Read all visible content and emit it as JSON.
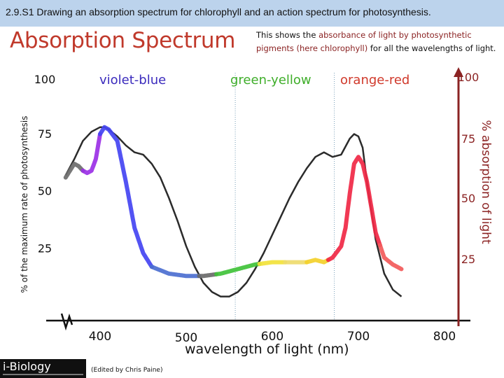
{
  "header": {
    "topbar": "2.9.S1 Drawing an absorption spectrum for chlorophyll and an action spectrum for photosynthesis.",
    "title": "Absorption Spectrum",
    "desc_parts": [
      "This shows the ",
      "absorbance of light by photosynthetic pigments (here chlorophyll)",
      " for all the wavelengths of light."
    ]
  },
  "footer": {
    "logo": "i-Biology",
    "credit": "(Edited by Chris Paine)"
  },
  "colors": {
    "title": "#c0392b",
    "right_axis": "#8b2323",
    "violet_blue": "#3b2bbd",
    "green_yellow": "#3fae2a",
    "orange_red": "#d0392b"
  },
  "chart_data": {
    "type": "line",
    "xlabel": "wavelength of light (nm)",
    "ylabel_left": "% of the maximum rate of photosynthesis",
    "ylabel_right": "% absorption of light",
    "x_ticks": [
      "400",
      "500",
      "600",
      "700",
      "800"
    ],
    "y_left_ticks": [
      "100",
      "75",
      "50",
      "25"
    ],
    "y_right_ticks": [
      "100",
      "75",
      "50",
      "25"
    ],
    "region_labels": [
      {
        "label": "violet-blue"
      },
      {
        "label": "green-yellow"
      },
      {
        "label": "orange-red"
      }
    ],
    "series": [
      {
        "name": "action",
        "x": [
          360,
          365,
          370,
          375,
          380,
          385,
          390,
          395,
          400,
          405,
          410,
          420,
          430,
          440,
          450,
          460,
          480,
          500,
          520,
          540,
          560,
          580,
          600,
          620,
          640,
          650,
          660,
          670,
          680,
          685,
          690,
          695,
          700,
          705,
          710,
          720,
          730,
          740,
          750
        ],
        "y": [
          57,
          60,
          63,
          62,
          60,
          59,
          60,
          65,
          76,
          79,
          78,
          73,
          55,
          35,
          24,
          18,
          15,
          14,
          14,
          15,
          17,
          19,
          20,
          20,
          20,
          21,
          20,
          22,
          27,
          35,
          50,
          63,
          66,
          63,
          55,
          33,
          22,
          19,
          17
        ]
      },
      {
        "name": "absorption",
        "x": [
          360,
          370,
          380,
          390,
          400,
          405,
          410,
          420,
          430,
          440,
          450,
          460,
          470,
          480,
          490,
          500,
          510,
          520,
          530,
          540,
          550,
          560,
          570,
          580,
          590,
          600,
          610,
          620,
          630,
          640,
          650,
          660,
          670,
          680,
          690,
          695,
          700,
          705,
          710,
          720,
          730,
          740,
          750
        ],
        "y": [
          58,
          65,
          73,
          77,
          79,
          79,
          78,
          75,
          71,
          68,
          67,
          63,
          57,
          48,
          38,
          27,
          18,
          11,
          7,
          5,
          5,
          7,
          11,
          17,
          24,
          32,
          40,
          48,
          55,
          61,
          66,
          68,
          66,
          67,
          74,
          76,
          75,
          70,
          55,
          30,
          15,
          8,
          5
        ]
      }
    ]
  }
}
